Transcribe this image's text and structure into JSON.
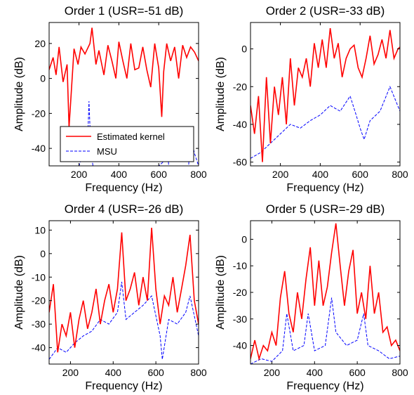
{
  "chart_data": [
    {
      "type": "line",
      "title": "Order 1 (USR=-51 dB)",
      "xlabel": "Frequency (Hz)",
      "ylabel": "Amplitude (dB)",
      "xlim": [
        50,
        800
      ],
      "ylim": [
        -50,
        32
      ],
      "xticks": [
        200,
        400,
        600,
        800
      ],
      "yticks": [
        -40,
        -20,
        0,
        20
      ],
      "legend": {
        "placement": "bottom-left",
        "entries": [
          "Estimated kernel",
          "MSU"
        ]
      },
      "series": [
        {
          "name": "Estimated kernel",
          "color": "#ff0000",
          "style": "solid",
          "x": [
            50,
            70,
            85,
            100,
            120,
            140,
            150,
            175,
            195,
            210,
            230,
            255,
            265,
            285,
            300,
            325,
            345,
            365,
            385,
            400,
            420,
            440,
            460,
            480,
            500,
            520,
            540,
            560,
            580,
            600,
            615,
            625,
            640,
            660,
            680,
            700,
            720,
            740,
            760,
            780,
            800
          ],
          "values": [
            5,
            12,
            2,
            18,
            -2,
            8,
            -28,
            17,
            8,
            18,
            14,
            20,
            29,
            8,
            16,
            2,
            19,
            10,
            0,
            21,
            10,
            0,
            20,
            5,
            6,
            18,
            5,
            -5,
            20,
            6,
            -22,
            4,
            20,
            10,
            18,
            0,
            19,
            12,
            18,
            15,
            10
          ]
        },
        {
          "name": "MSU",
          "color": "#0000ff",
          "style": "dashed",
          "x": [
            50,
            100,
            150,
            200,
            230,
            240,
            250,
            260,
            270,
            300,
            400,
            450,
            500,
            550,
            600,
            620,
            640,
            650,
            700,
            750,
            760,
            780,
            800
          ],
          "values": [
            -50,
            -50,
            -50,
            -50,
            -40,
            -48,
            -13,
            -42,
            -50,
            -50,
            -50,
            -50,
            -50,
            -50,
            -50,
            -48,
            -33,
            -50,
            -50,
            -50,
            -33,
            -43,
            -50
          ]
        }
      ]
    },
    {
      "type": "line",
      "title": "Order 2 (USR=-33 dB)",
      "xlabel": "Frequency (Hz)",
      "ylabel": "Amplitude (dB)",
      "xlim": [
        50,
        800
      ],
      "ylim": [
        -62,
        14
      ],
      "xticks": [
        200,
        400,
        600,
        800
      ],
      "yticks": [
        -60,
        -40,
        -20,
        0
      ],
      "series": [
        {
          "name": "Estimated kernel",
          "color": "#ff0000",
          "style": "solid",
          "x": [
            50,
            70,
            90,
            110,
            130,
            150,
            170,
            190,
            210,
            230,
            250,
            270,
            290,
            310,
            330,
            350,
            370,
            390,
            410,
            430,
            450,
            470,
            490,
            510,
            530,
            550,
            570,
            590,
            610,
            630,
            650,
            670,
            690,
            710,
            730,
            750,
            770,
            790,
            800
          ],
          "values": [
            -30,
            -45,
            -25,
            -60,
            -15,
            -50,
            -20,
            -35,
            -15,
            -40,
            -5,
            -30,
            -10,
            -15,
            -5,
            -20,
            3,
            -10,
            5,
            -10,
            11,
            -5,
            3,
            -15,
            -5,
            0,
            2,
            -10,
            -15,
            -5,
            7,
            -8,
            -3,
            5,
            -5,
            10,
            -5,
            0,
            1
          ]
        },
        {
          "name": "MSU",
          "color": "#0000ff",
          "style": "dashed",
          "x": [
            50,
            100,
            150,
            200,
            250,
            300,
            350,
            400,
            450,
            500,
            550,
            580,
            600,
            620,
            650,
            700,
            750,
            800
          ],
          "values": [
            -58,
            -55,
            -50,
            -45,
            -40,
            -42,
            -38,
            -35,
            -30,
            -33,
            -25,
            -35,
            -42,
            -48,
            -38,
            -33,
            -20,
            -33
          ]
        }
      ]
    },
    {
      "type": "line",
      "title": "Order 4 (USR=-26 dB)",
      "xlabel": "Frequency (Hz)",
      "ylabel": "Amplitude (dB)",
      "xlim": [
        100,
        800
      ],
      "ylim": [
        -47,
        14
      ],
      "xticks": [
        200,
        400,
        600,
        800
      ],
      "yticks": [
        -40,
        -30,
        -20,
        -10,
        0,
        10
      ],
      "series": [
        {
          "name": "Estimated kernel",
          "color": "#ff0000",
          "style": "solid",
          "x": [
            100,
            120,
            140,
            160,
            180,
            200,
            220,
            240,
            260,
            280,
            300,
            320,
            340,
            360,
            380,
            400,
            420,
            440,
            460,
            480,
            500,
            520,
            540,
            560,
            580,
            600,
            620,
            640,
            660,
            680,
            700,
            720,
            740,
            760,
            780,
            800
          ],
          "values": [
            -25,
            -13,
            -42,
            -30,
            -35,
            -25,
            -40,
            -28,
            -20,
            -32,
            -25,
            -15,
            -30,
            -20,
            -13,
            -25,
            -15,
            9,
            -20,
            -15,
            -8,
            -22,
            -10,
            -20,
            11,
            -15,
            -30,
            -18,
            -22,
            -10,
            -25,
            -15,
            -5,
            8,
            -20,
            -30
          ]
        },
        {
          "name": "MSU",
          "color": "#0000ff",
          "style": "dashed",
          "x": [
            100,
            140,
            180,
            220,
            260,
            300,
            340,
            380,
            420,
            440,
            460,
            500,
            540,
            580,
            620,
            630,
            660,
            700,
            740,
            760,
            800
          ],
          "values": [
            -45,
            -40,
            -42,
            -38,
            -35,
            -33,
            -28,
            -30,
            -25,
            -12,
            -28,
            -25,
            -22,
            -18,
            -35,
            -45,
            -28,
            -30,
            -25,
            -18,
            -35
          ]
        }
      ]
    },
    {
      "type": "line",
      "title": "Order 5 (USR=-29 dB)",
      "xlabel": "Frequency (Hz)",
      "ylabel": "Amplitude (dB)",
      "xlim": [
        100,
        800
      ],
      "ylim": [
        -47,
        7
      ],
      "xticks": [
        200,
        400,
        600,
        800
      ],
      "yticks": [
        -40,
        -30,
        -20,
        -10,
        0
      ],
      "series": [
        {
          "name": "Estimated kernel",
          "color": "#ff0000",
          "style": "solid",
          "x": [
            100,
            120,
            140,
            160,
            180,
            200,
            220,
            240,
            260,
            280,
            300,
            320,
            340,
            360,
            380,
            400,
            420,
            440,
            460,
            480,
            500,
            520,
            540,
            560,
            580,
            600,
            620,
            640,
            660,
            680,
            700,
            720,
            740,
            760,
            780,
            800
          ],
          "values": [
            -45,
            -38,
            -45,
            -40,
            -42,
            -35,
            -40,
            -22,
            -12,
            -28,
            -35,
            -20,
            -30,
            -15,
            -3,
            -25,
            -8,
            -25,
            -18,
            -5,
            6,
            -10,
            -25,
            -12,
            -4,
            -28,
            -20,
            -30,
            -10,
            -28,
            -20,
            -35,
            -33,
            -40,
            -38,
            -42
          ]
        },
        {
          "name": "MSU",
          "color": "#0000ff",
          "style": "dashed",
          "x": [
            100,
            150,
            200,
            250,
            270,
            300,
            350,
            370,
            400,
            450,
            480,
            500,
            550,
            600,
            630,
            650,
            700,
            750,
            800
          ],
          "values": [
            -47,
            -45,
            -46,
            -42,
            -28,
            -42,
            -40,
            -28,
            -42,
            -40,
            -22,
            -35,
            -40,
            -38,
            -28,
            -40,
            -42,
            -45,
            -44
          ]
        }
      ]
    }
  ]
}
